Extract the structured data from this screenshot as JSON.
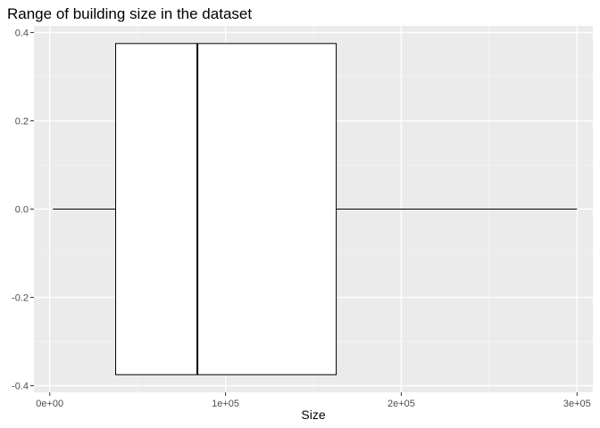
{
  "chart_data": {
    "type": "boxplot",
    "title": "Range of building size in the dataset",
    "xlabel": "Size",
    "ylabel": "",
    "xlim": [
      -9000,
      309000
    ],
    "ylim": [
      -0.415,
      0.415
    ],
    "x_ticks": [
      0,
      100000,
      200000,
      300000
    ],
    "x_tick_labels": [
      "0e+00",
      "1e+05",
      "2e+05",
      "3e+05"
    ],
    "y_ticks": [
      0.4,
      0.2,
      0.0,
      -0.2,
      -0.4
    ],
    "y_tick_labels": [
      "0.4",
      "0.2",
      "0.0",
      "-0.2",
      "-0.4"
    ],
    "box": {
      "min": 1740,
      "q1": 37500,
      "median": 84000,
      "q3": 163000,
      "max": 300000,
      "y_center": 0,
      "half_width": 0.375
    },
    "grid": true,
    "legend": "none",
    "colors": {
      "panel_background": "#EBEBEB",
      "grid_major": "#FFFFFF",
      "grid_minor": "#F5F5F5",
      "box_fill": "#FFFFFF",
      "box_stroke": "#000000",
      "tick_label": "#4D4D4D"
    }
  }
}
